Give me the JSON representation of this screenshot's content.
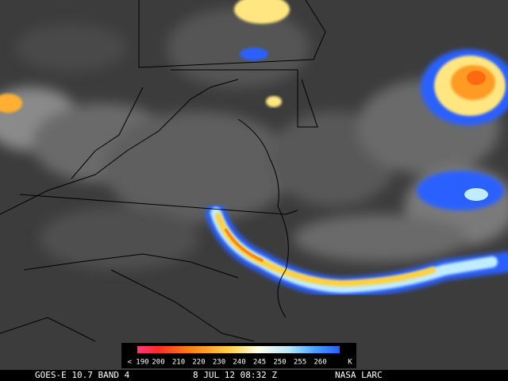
{
  "legend": {
    "labels": [
      "< 190",
      "200",
      "210",
      "220",
      "230",
      "240",
      "245",
      "250",
      "255",
      "260"
    ],
    "unit": "K"
  },
  "footer": {
    "satellite": "GOES-E 10.7 BAND 4",
    "timestamp": "8 JUL 12 08:32 Z",
    "source": "NASA LARC"
  }
}
